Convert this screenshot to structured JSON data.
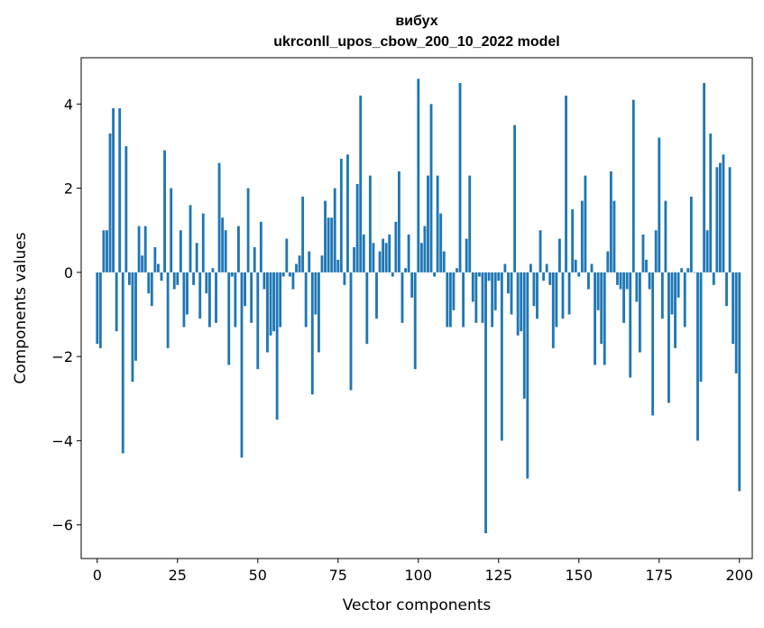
{
  "chart_data": {
    "type": "bar",
    "title_line1": "вибух",
    "title_line2": "ukrconll_upos_cbow_200_10_2022 model",
    "xlabel": "Vector components",
    "ylabel": "Components values",
    "xlim": [
      -5,
      204
    ],
    "ylim": [
      -6.8,
      5.1
    ],
    "xticks": [
      0,
      25,
      50,
      75,
      100,
      125,
      150,
      175,
      200
    ],
    "yticks": [
      -6,
      -4,
      -2,
      0,
      2,
      4
    ],
    "ytick_labels": [
      "−6",
      "−4",
      "−2",
      "0",
      "2",
      "4"
    ],
    "bar_color": "#1f77b4",
    "grid": false,
    "values": [
      -1.7,
      -1.8,
      1.0,
      1.0,
      3.3,
      3.9,
      -1.4,
      3.9,
      -4.3,
      3.0,
      -0.3,
      -2.6,
      -2.1,
      1.1,
      0.4,
      1.1,
      -0.5,
      -0.8,
      0.6,
      0.2,
      -0.2,
      2.9,
      -1.8,
      2.0,
      -0.4,
      -0.3,
      1.0,
      -1.3,
      -1.0,
      1.6,
      -0.3,
      0.7,
      -1.1,
      1.4,
      -0.5,
      -1.3,
      0.1,
      -1.2,
      2.6,
      1.3,
      1.0,
      -2.2,
      -0.1,
      -1.3,
      1.1,
      -4.4,
      -0.8,
      2.0,
      -1.2,
      0.6,
      -2.3,
      1.2,
      -0.4,
      -1.9,
      -1.5,
      -1.4,
      -3.5,
      -1.3,
      -0.1,
      0.8,
      -0.1,
      -0.4,
      0.2,
      0.4,
      1.8,
      -1.3,
      0.5,
      -2.9,
      -1.0,
      -1.9,
      0.4,
      1.7,
      1.3,
      1.3,
      2.0,
      0.3,
      2.7,
      -0.3,
      2.8,
      -2.8,
      0.6,
      2.1,
      4.2,
      0.9,
      -1.7,
      2.3,
      0.7,
      -1.1,
      0.5,
      0.8,
      0.7,
      0.9,
      -0.1,
      1.2,
      2.4,
      -1.2,
      0.1,
      0.9,
      -0.6,
      -2.3,
      4.6,
      0.7,
      1.1,
      2.3,
      4.0,
      -0.1,
      2.3,
      1.4,
      0.5,
      -1.3,
      -1.3,
      -0.9,
      0.1,
      4.5,
      -1.3,
      0.8,
      2.3,
      -0.7,
      -1.2,
      -0.1,
      -1.2,
      -6.2,
      -0.2,
      -1.3,
      -0.9,
      -0.2,
      -4.0,
      0.2,
      -0.5,
      -1.0,
      3.5,
      -1.5,
      -1.4,
      -3.0,
      -4.9,
      0.2,
      -0.8,
      -1.1,
      1.0,
      -0.2,
      0.2,
      -0.3,
      -1.8,
      -1.3,
      0.8,
      -1.1,
      4.2,
      -1.0,
      1.5,
      0.3,
      -0.1,
      1.7,
      2.3,
      -0.4,
      0.2,
      -2.2,
      -0.9,
      -1.7,
      -2.2,
      0.5,
      2.4,
      1.7,
      -0.3,
      -0.4,
      -1.2,
      -0.4,
      -2.5,
      4.1,
      -0.7,
      -1.9,
      0.9,
      0.3,
      -0.4,
      -3.4,
      1.0,
      3.2,
      -1.1,
      1.7,
      -3.1,
      -1.0,
      -1.8,
      -0.6,
      0.1,
      -1.3,
      0.1,
      1.8,
      0.0,
      -4.0,
      -2.6,
      4.5,
      1.0,
      3.3,
      -0.3,
      2.5,
      2.6,
      2.8,
      -0.8,
      2.5,
      -1.7,
      -2.4,
      -5.2
    ]
  }
}
